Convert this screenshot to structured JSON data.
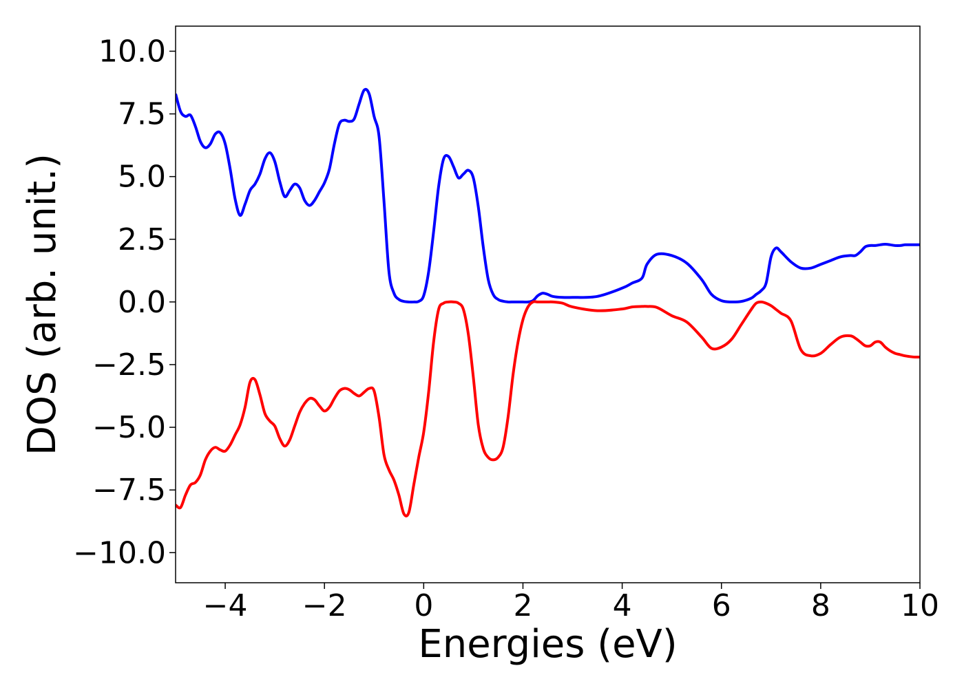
{
  "chart_data": {
    "type": "line",
    "title": "",
    "xlabel": "Energies (eV)",
    "ylabel": "DOS (arb. unit.)",
    "xlim": [
      -5,
      10
    ],
    "ylim": [
      -11.2,
      11.0
    ],
    "xticks": [
      -4,
      -2,
      0,
      2,
      4,
      6,
      8,
      10
    ],
    "xtick_labels": [
      "−4",
      "−2",
      "0",
      "2",
      "4",
      "6",
      "8",
      "10"
    ],
    "yticks": [
      10.0,
      7.5,
      5.0,
      2.5,
      0.0,
      -2.5,
      -5.0,
      -7.5,
      -10.0
    ],
    "ytick_labels": [
      "10.0",
      "7.5",
      "5.0",
      "2.5",
      "0.0",
      "−2.5",
      "−5.0",
      "−7.5",
      "−10.0"
    ],
    "grid": false,
    "legend": "none",
    "series": [
      {
        "color": "#0000ff",
        "x": [
          -5.0,
          -4.9,
          -4.8,
          -4.7,
          -4.6,
          -4.5,
          -4.4,
          -4.3,
          -4.2,
          -4.1,
          -4.0,
          -3.9,
          -3.8,
          -3.7,
          -3.6,
          -3.5,
          -3.4,
          -3.3,
          -3.2,
          -3.1,
          -3.0,
          -2.9,
          -2.8,
          -2.7,
          -2.6,
          -2.5,
          -2.4,
          -2.3,
          -2.2,
          -2.1,
          -2.0,
          -1.9,
          -1.8,
          -1.7,
          -1.6,
          -1.5,
          -1.4,
          -1.3,
          -1.2,
          -1.1,
          -1.0,
          -0.9,
          -0.8,
          -0.7,
          -0.6,
          -0.5,
          -0.4,
          -0.3,
          -0.2,
          -0.1,
          0.0,
          0.1,
          0.2,
          0.3,
          0.4,
          0.5,
          0.6,
          0.7,
          0.8,
          0.9,
          1.0,
          1.1,
          1.2,
          1.3,
          1.4,
          1.5,
          1.6,
          1.7,
          1.8,
          1.9,
          2.0,
          2.1,
          2.2,
          2.3,
          2.4,
          2.5,
          2.6,
          2.8,
          3.0,
          3.5,
          4.0,
          4.2,
          4.4,
          4.5,
          4.7,
          5.0,
          5.3,
          5.6,
          5.8,
          6.0,
          6.2,
          6.4,
          6.6,
          6.7,
          6.8,
          6.9,
          7.0,
          7.1,
          7.2,
          7.4,
          7.6,
          7.8,
          8.0,
          8.2,
          8.4,
          8.6,
          8.7,
          8.8,
          8.9,
          9.0,
          9.1,
          9.2,
          9.3,
          9.4,
          9.5,
          9.6,
          9.7,
          9.8,
          9.9,
          10.0
        ],
        "y": [
          8.3,
          7.6,
          7.4,
          7.45,
          7.0,
          6.4,
          6.15,
          6.3,
          6.7,
          6.75,
          6.3,
          5.3,
          4.1,
          3.45,
          3.9,
          4.45,
          4.7,
          5.1,
          5.7,
          5.95,
          5.6,
          4.8,
          4.2,
          4.45,
          4.7,
          4.55,
          4.05,
          3.85,
          4.05,
          4.4,
          4.75,
          5.3,
          6.3,
          7.1,
          7.25,
          7.2,
          7.3,
          7.9,
          8.45,
          8.3,
          7.4,
          6.6,
          4.0,
          1.2,
          0.35,
          0.1,
          0.02,
          0.0,
          0.0,
          0.02,
          0.25,
          1.2,
          2.8,
          4.6,
          5.7,
          5.8,
          5.4,
          4.95,
          5.1,
          5.25,
          4.95,
          3.8,
          2.2,
          0.9,
          0.3,
          0.1,
          0.03,
          0.0,
          0.0,
          0.0,
          0.0,
          0.0,
          0.05,
          0.25,
          0.35,
          0.3,
          0.22,
          0.18,
          0.18,
          0.22,
          0.55,
          0.75,
          0.95,
          1.5,
          1.9,
          1.85,
          1.55,
          0.9,
          0.3,
          0.05,
          0.0,
          0.02,
          0.15,
          0.3,
          0.45,
          0.75,
          1.8,
          2.15,
          2.0,
          1.6,
          1.35,
          1.35,
          1.5,
          1.65,
          1.8,
          1.85,
          1.85,
          2.0,
          2.2,
          2.25,
          2.25,
          2.28,
          2.3,
          2.28,
          2.25,
          2.25,
          2.28,
          2.28,
          2.28,
          2.28
        ]
      },
      {
        "color": "#ff0000",
        "x": [
          -5.0,
          -4.9,
          -4.8,
          -4.7,
          -4.6,
          -4.5,
          -4.4,
          -4.3,
          -4.2,
          -4.1,
          -4.0,
          -3.9,
          -3.8,
          -3.7,
          -3.6,
          -3.5,
          -3.4,
          -3.3,
          -3.2,
          -3.1,
          -3.0,
          -2.9,
          -2.8,
          -2.7,
          -2.6,
          -2.5,
          -2.4,
          -2.3,
          -2.2,
          -2.1,
          -2.0,
          -1.9,
          -1.8,
          -1.7,
          -1.6,
          -1.5,
          -1.4,
          -1.3,
          -1.2,
          -1.1,
          -1.0,
          -0.9,
          -0.8,
          -0.7,
          -0.6,
          -0.5,
          -0.4,
          -0.3,
          -0.2,
          -0.1,
          0.0,
          0.1,
          0.2,
          0.3,
          0.4,
          0.5,
          0.6,
          0.7,
          0.8,
          0.9,
          1.0,
          1.1,
          1.2,
          1.3,
          1.4,
          1.5,
          1.6,
          1.7,
          1.8,
          1.9,
          2.0,
          2.1,
          2.2,
          2.3,
          2.4,
          2.5,
          2.6,
          2.8,
          3.0,
          3.5,
          4.0,
          4.2,
          4.4,
          4.5,
          4.7,
          5.0,
          5.3,
          5.6,
          5.8,
          6.0,
          6.2,
          6.4,
          6.6,
          6.7,
          6.8,
          6.9,
          7.0,
          7.1,
          7.2,
          7.4,
          7.6,
          7.8,
          8.0,
          8.2,
          8.4,
          8.6,
          8.7,
          8.8,
          8.9,
          9.0,
          9.1,
          9.2,
          9.3,
          9.4,
          9.5,
          9.6,
          9.7,
          9.8,
          9.9,
          10.0
        ],
        "y": [
          -8.1,
          -8.2,
          -7.7,
          -7.3,
          -7.2,
          -6.9,
          -6.3,
          -5.95,
          -5.8,
          -5.9,
          -5.95,
          -5.7,
          -5.3,
          -4.9,
          -4.2,
          -3.2,
          -3.1,
          -3.7,
          -4.45,
          -4.75,
          -4.95,
          -5.45,
          -5.75,
          -5.5,
          -4.95,
          -4.4,
          -4.05,
          -3.85,
          -3.9,
          -4.15,
          -4.35,
          -4.2,
          -3.85,
          -3.55,
          -3.45,
          -3.5,
          -3.65,
          -3.75,
          -3.6,
          -3.45,
          -3.55,
          -4.6,
          -6.1,
          -6.7,
          -7.1,
          -7.7,
          -8.45,
          -8.4,
          -7.3,
          -6.2,
          -5.2,
          -3.6,
          -1.6,
          -0.3,
          -0.05,
          0.0,
          0.0,
          -0.05,
          -0.3,
          -1.3,
          -3.0,
          -4.9,
          -5.85,
          -6.2,
          -6.3,
          -6.2,
          -5.8,
          -4.6,
          -2.9,
          -1.6,
          -0.7,
          -0.2,
          0.0,
          0.0,
          0.0,
          0.0,
          0.0,
          -0.05,
          -0.2,
          -0.35,
          -0.28,
          -0.2,
          -0.18,
          -0.18,
          -0.22,
          -0.55,
          -0.8,
          -1.4,
          -1.85,
          -1.8,
          -1.5,
          -0.9,
          -0.3,
          -0.05,
          0.0,
          -0.05,
          -0.15,
          -0.3,
          -0.45,
          -0.75,
          -1.9,
          -2.15,
          -2.05,
          -1.7,
          -1.4,
          -1.35,
          -1.45,
          -1.6,
          -1.75,
          -1.75,
          -1.6,
          -1.6,
          -1.8,
          -1.95,
          -2.05,
          -2.1,
          -2.15,
          -2.18,
          -2.2,
          -2.2
        ]
      }
    ]
  }
}
